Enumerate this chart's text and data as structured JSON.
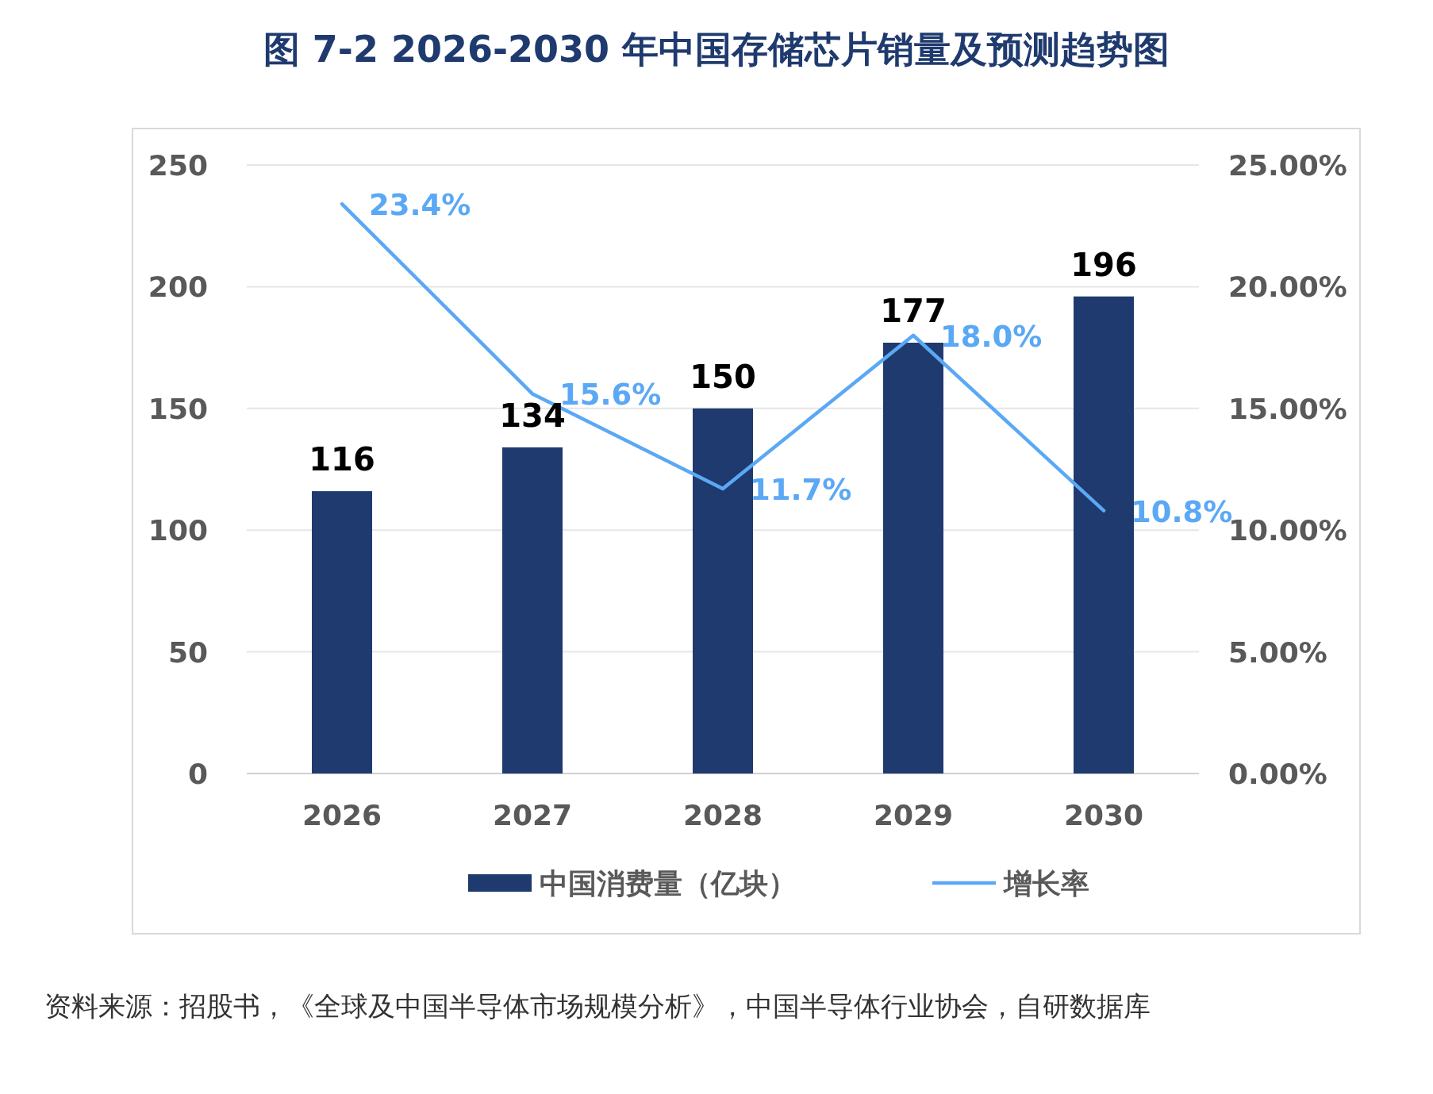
{
  "chart_data": {
    "type": "bar",
    "title": "图  7-2 2026-2030 年中国存储芯片销量及预测趋势图",
    "categories": [
      "2026",
      "2027",
      "2028",
      "2029",
      "2030"
    ],
    "series": [
      {
        "name": "中国消费量（亿块）",
        "color": "#1f3a6e",
        "values": [
          116,
          134,
          150,
          177,
          196
        ],
        "value_labels": [
          "116",
          "134",
          "150",
          "177",
          "196"
        ]
      },
      {
        "name": "增长率",
        "type": "line",
        "axis": "y2",
        "color": "#5ba8f5",
        "values": [
          23.4,
          15.6,
          11.7,
          18.0,
          10.8
        ],
        "value_labels": [
          "23.4%",
          "15.6%",
          "11.7%",
          "18.0%",
          "10.8%"
        ]
      }
    ],
    "ylim": [
      0,
      250
    ],
    "yticks": [
      0,
      50,
      100,
      150,
      200,
      250
    ],
    "y2lim": [
      0,
      25
    ],
    "y2ticks": [
      {
        "value": 0,
        "label": "0.00%"
      },
      {
        "value": 5,
        "label": "5.00%"
      },
      {
        "value": 10,
        "label": "10.00%"
      },
      {
        "value": 15,
        "label": "15.00%"
      },
      {
        "value": 20,
        "label": "20.00%"
      },
      {
        "value": 25,
        "label": "25.00%"
      }
    ],
    "grid": "y",
    "legend": "bottom",
    "marker": "none",
    "line_style": "solid",
    "annotations": [
      "资料来源：招股书，《全球及中国半导体市场规模分析》，中国半导体行业协会，自研数据库"
    ]
  }
}
